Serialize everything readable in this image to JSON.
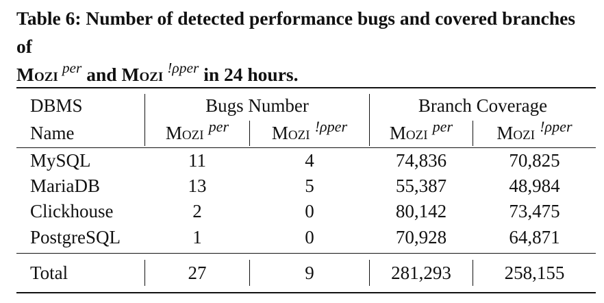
{
  "caption": {
    "prefix": "Table 6: Number of detected performance bugs and covered branches of",
    "tool1": "Mozi",
    "sup1": "per",
    "and": "and",
    "tool2": "Mozi",
    "sup2": "!ρper",
    "suffix": "in 24 hours."
  },
  "header": {
    "dbms": "DBMS",
    "name": "Name",
    "group_bugs": "Bugs Number",
    "group_coverage": "Branch Coverage",
    "cols": [
      {
        "tool": "Mozi",
        "sup": "per"
      },
      {
        "tool": "Mozi",
        "sup": "!ρper"
      },
      {
        "tool": "Mozi",
        "sup": "per"
      },
      {
        "tool": "Mozi",
        "sup": "!ρper"
      }
    ]
  },
  "rows": [
    {
      "name": "MySQL",
      "bugs_per": "11",
      "bugs_noper": "4",
      "cov_per": "74,836",
      "cov_noper": "70,825"
    },
    {
      "name": "MariaDB",
      "bugs_per": "13",
      "bugs_noper": "5",
      "cov_per": "55,387",
      "cov_noper": "48,984"
    },
    {
      "name": "Clickhouse",
      "bugs_per": "2",
      "bugs_noper": "0",
      "cov_per": "80,142",
      "cov_noper": "73,475"
    },
    {
      "name": "PostgreSQL",
      "bugs_per": "1",
      "bugs_noper": "0",
      "cov_per": "70,928",
      "cov_noper": "64,871"
    }
  ],
  "total": {
    "name": "Total",
    "bugs_per": "27",
    "bugs_noper": "9",
    "cov_per": "281,293",
    "cov_noper": "258,155"
  }
}
